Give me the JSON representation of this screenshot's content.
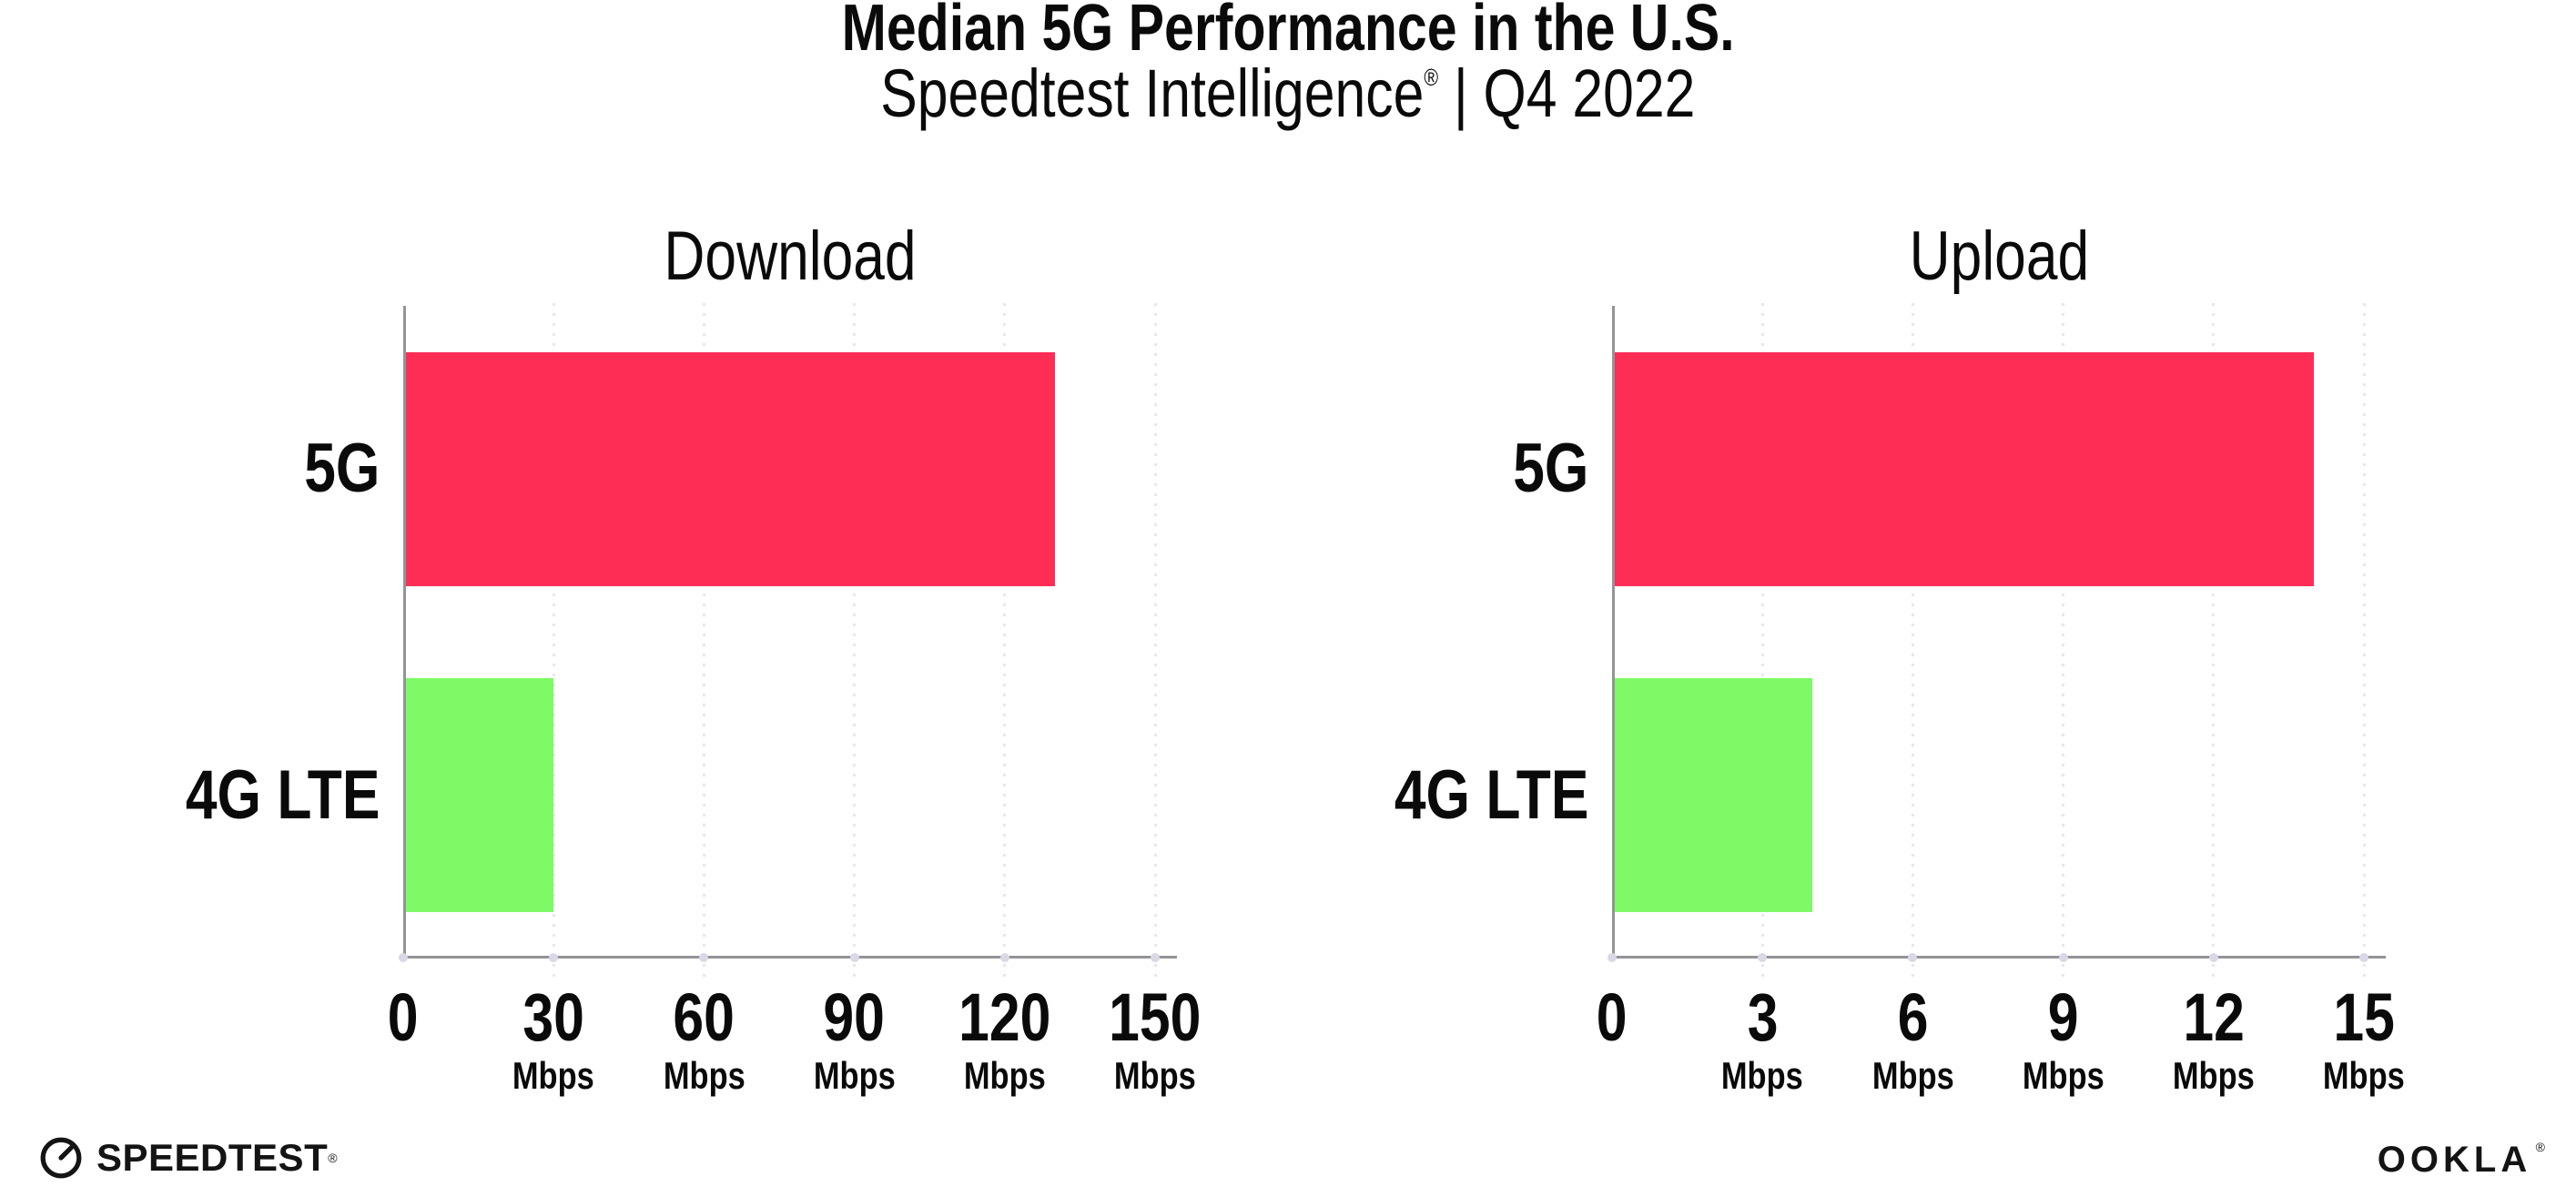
{
  "header": {
    "title": "Median 5G Performance in the U.S.",
    "subtitle_brand": "Speedtest Intelligence",
    "reg_mark": "®",
    "subtitle_rest": " | Q4 2022"
  },
  "colors": {
    "bar_5g": "#FD2D55",
    "bar_4g_lte": "#7EFA66",
    "axis_line": "#949498",
    "grid_dot": "#E7E7F0",
    "tick_dot": "#D8D8E6",
    "text": "#0A0A0A"
  },
  "chart_data": [
    {
      "type": "bar",
      "orientation": "horizontal",
      "title": "Download",
      "categories": [
        "5G",
        "4G LTE"
      ],
      "values": [
        130,
        30
      ],
      "unit": "Mbps",
      "xticks": [
        0,
        30,
        60,
        90,
        120,
        150
      ],
      "xlim": [
        0,
        150
      ],
      "grid": "vertical-dotted",
      "legend": "none",
      "bar_colors": [
        "#FD2D55",
        "#7EFA66"
      ]
    },
    {
      "type": "bar",
      "orientation": "horizontal",
      "title": "Upload",
      "categories": [
        "5G",
        "4G LTE"
      ],
      "values": [
        14,
        4
      ],
      "unit": "Mbps",
      "xticks": [
        0,
        3,
        6,
        9,
        12,
        15
      ],
      "xlim": [
        0,
        15
      ],
      "grid": "vertical-dotted",
      "legend": "none",
      "bar_colors": [
        "#FD2D55",
        "#7EFA66"
      ]
    }
  ],
  "footer": {
    "speedtest_text": "SPEEDTEST",
    "ookla_text": "OOKLA",
    "reg_mark": "®"
  }
}
